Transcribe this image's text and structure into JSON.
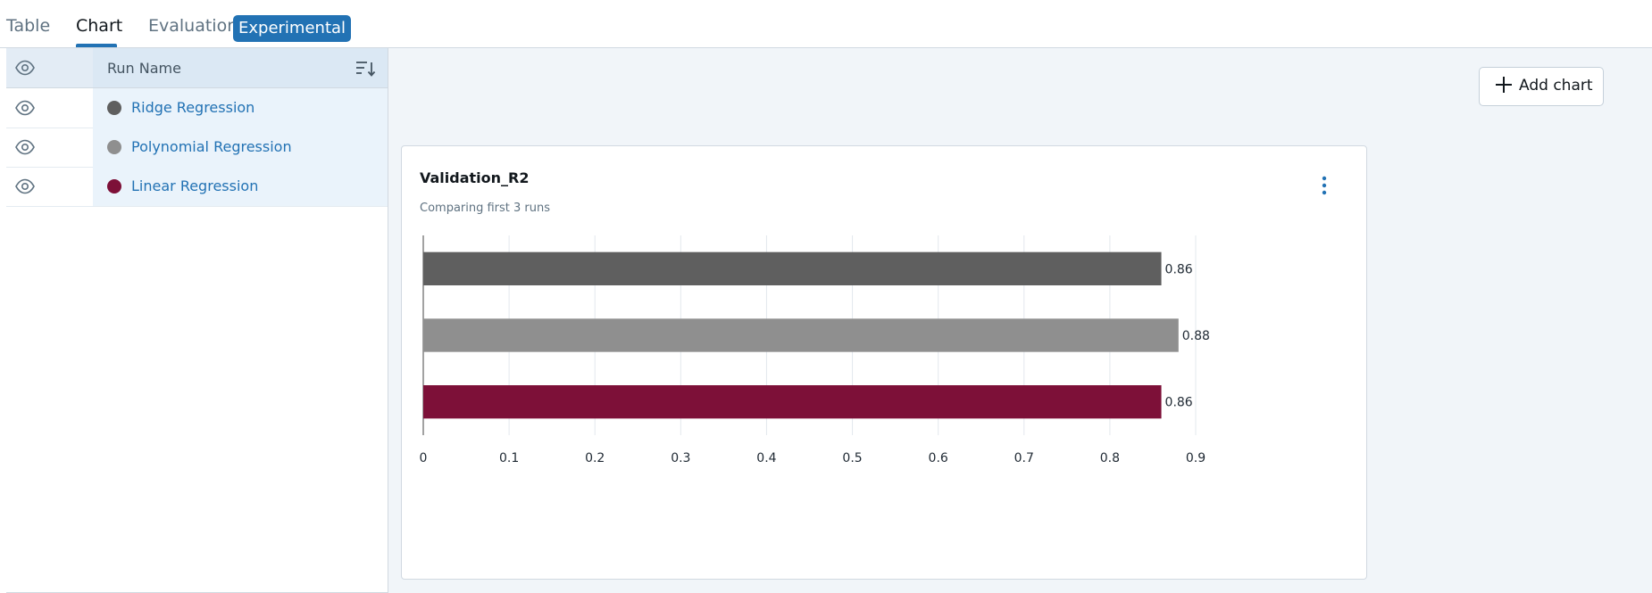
{
  "tabs": [
    {
      "label": "Table",
      "active": false
    },
    {
      "label": "Chart",
      "active": true
    },
    {
      "label": "Evaluation",
      "active": false
    },
    {
      "label": "Experimental",
      "active": false,
      "badge": true
    }
  ],
  "runs_table": {
    "header": {
      "name_label": "Run Name"
    },
    "runs": [
      {
        "name": "Ridge Regression",
        "color": "#5f5f5f"
      },
      {
        "name": "Polynomial Regression",
        "color": "#8f8f8f"
      },
      {
        "name": "Linear Regression",
        "color": "#7d1038"
      }
    ]
  },
  "toolbar": {
    "add_chart_label": "Add chart"
  },
  "chart_card": {
    "title": "Validation_R2",
    "subtitle": "Comparing first 3 runs"
  },
  "chart_data": {
    "type": "bar",
    "orientation": "horizontal",
    "title": "Validation_R2",
    "subtitle": "Comparing first 3 runs",
    "categories": [
      "Ridge Regression",
      "Polynomial Regression",
      "Linear Regression"
    ],
    "values": [
      0.86,
      0.88,
      0.86
    ],
    "value_labels": [
      "0.86",
      "0.88",
      "0.86"
    ],
    "colors": [
      "#5f5f5f",
      "#8f8f8f",
      "#7d1038"
    ],
    "xlim": [
      0,
      0.9
    ],
    "xticks": [
      "0",
      "0.1",
      "0.2",
      "0.3",
      "0.4",
      "0.5",
      "0.6",
      "0.7",
      "0.8",
      "0.9"
    ],
    "grid": true,
    "xlabel": "",
    "ylabel": ""
  },
  "colors": {
    "accent": "#2272b4",
    "panel_bg": "#f1f5f9"
  }
}
